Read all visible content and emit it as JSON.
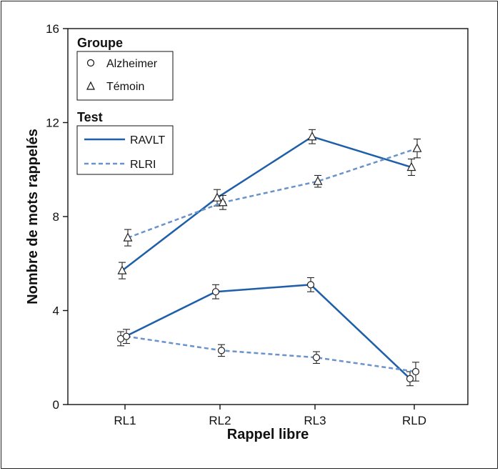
{
  "chart_data": {
    "type": "line",
    "xlabel": "Rappel libre",
    "ylabel": "Nombre de mots rappelés",
    "categories": [
      "RL1",
      "RL2",
      "RL3",
      "RLD"
    ],
    "ylim": [
      0,
      16
    ],
    "yticks": [
      0,
      4,
      8,
      12,
      16
    ],
    "grid": false,
    "legend_groups": {
      "group_title": "Groupe",
      "group_entries": [
        "Alzheimer",
        "Témoin"
      ],
      "test_title": "Test",
      "test_entries": [
        "RAVLT",
        "RLRI"
      ],
      "placement": "top-left"
    },
    "colors": {
      "ravlt": "#1f5fa8",
      "rlri": "#6a93cc",
      "axis": "#111111"
    },
    "series": [
      {
        "name": "Alzheimer RAVLT",
        "group": "Alzheimer",
        "test": "RAVLT",
        "marker": "circle",
        "style": "solid",
        "values": [
          2.8,
          4.8,
          5.1,
          1.1
        ],
        "errors": [
          0.3,
          0.3,
          0.3,
          0.3
        ]
      },
      {
        "name": "Alzheimer RLRI",
        "group": "Alzheimer",
        "test": "RLRI",
        "marker": "circle",
        "style": "dashed",
        "values": [
          2.9,
          2.3,
          2.0,
          1.4
        ],
        "errors": [
          0.3,
          0.25,
          0.25,
          0.4
        ]
      },
      {
        "name": "Témoin RAVLT",
        "group": "Témoin",
        "test": "RAVLT",
        "marker": "triangle",
        "style": "solid",
        "values": [
          5.7,
          8.8,
          11.4,
          10.1
        ],
        "errors": [
          0.35,
          0.35,
          0.3,
          0.35
        ]
      },
      {
        "name": "Témoin RLRI",
        "group": "Témoin",
        "test": "RLRI",
        "marker": "triangle",
        "style": "dashed",
        "values": [
          7.1,
          8.6,
          9.5,
          10.9
        ],
        "errors": [
          0.35,
          0.3,
          0.25,
          0.4
        ]
      }
    ]
  }
}
